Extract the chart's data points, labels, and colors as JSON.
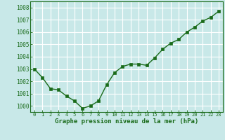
{
  "x": [
    0,
    1,
    2,
    3,
    4,
    5,
    6,
    7,
    8,
    9,
    10,
    11,
    12,
    13,
    14,
    15,
    16,
    17,
    18,
    19,
    20,
    21,
    22,
    23
  ],
  "y": [
    1003.0,
    1002.3,
    1001.4,
    1001.3,
    1000.8,
    1000.4,
    999.8,
    1000.0,
    1000.4,
    1001.7,
    1002.7,
    1003.2,
    1003.4,
    1003.4,
    1003.3,
    1003.9,
    1004.6,
    1005.1,
    1005.4,
    1006.0,
    1006.4,
    1006.9,
    1007.2,
    1007.7
  ],
  "line_color": "#1a6b1a",
  "marker": "s",
  "marker_size": 2.5,
  "bg_color": "#c8e8e8",
  "grid_color": "#ffffff",
  "xlabel": "Graphe pression niveau de la mer (hPa)",
  "xlabel_color": "#1a6b1a",
  "tick_color": "#1a6b1a",
  "ylim": [
    999.5,
    1008.5
  ],
  "yticks": [
    1000,
    1001,
    1002,
    1003,
    1004,
    1005,
    1006,
    1007,
    1008
  ],
  "xlim": [
    -0.5,
    23.5
  ],
  "xticks": [
    0,
    1,
    2,
    3,
    4,
    5,
    6,
    7,
    8,
    9,
    10,
    11,
    12,
    13,
    14,
    15,
    16,
    17,
    18,
    19,
    20,
    21,
    22,
    23
  ],
  "xtick_labels": [
    "0",
    "1",
    "2",
    "3",
    "4",
    "5",
    "6",
    "7",
    "8",
    "9",
    "10",
    "11",
    "12",
    "13",
    "14",
    "15",
    "16",
    "17",
    "18",
    "19",
    "20",
    "21",
    "22",
    "23"
  ]
}
